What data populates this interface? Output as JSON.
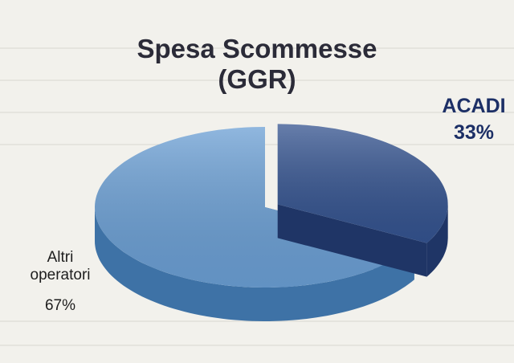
{
  "chart_data": {
    "type": "pie",
    "title": "Spesa Scommesse (GGR)",
    "categories": [
      "ACADI",
      "Altri operatori"
    ],
    "values": [
      33,
      67
    ],
    "value_labels": [
      "33%",
      "67%"
    ],
    "colors": [
      "#34538f",
      "#6b9fd4"
    ],
    "side_colors": [
      "#1f3566",
      "#3e72a6"
    ]
  }
}
